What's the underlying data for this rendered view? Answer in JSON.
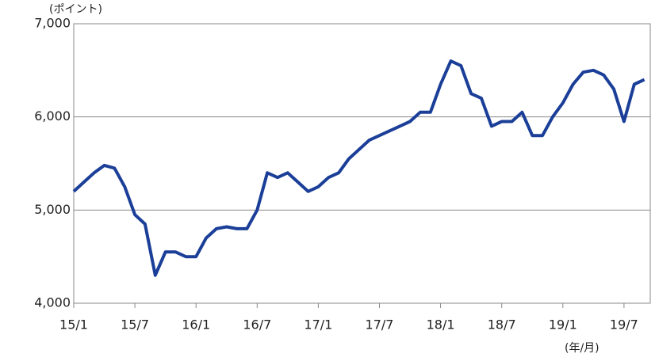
{
  "chart_data": {
    "type": "line",
    "y_unit": "(ポイント)",
    "x_unit": "(年/月)",
    "categories": [
      "15/1",
      null,
      null,
      null,
      null,
      null,
      "15/7",
      null,
      null,
      null,
      null,
      null,
      "16/1",
      null,
      null,
      null,
      null,
      null,
      "16/7",
      null,
      null,
      null,
      null,
      null,
      "17/1",
      null,
      null,
      null,
      null,
      null,
      "17/7",
      null,
      null,
      null,
      null,
      null,
      "18/1",
      null,
      null,
      null,
      null,
      null,
      "18/7",
      null,
      null,
      null,
      null,
      null,
      "19/1",
      null,
      null,
      null,
      null,
      null,
      "19/7",
      null,
      null
    ],
    "series": [
      {
        "color": "#1b3f98",
        "values": [
          5200,
          5300,
          5400,
          5480,
          5450,
          5250,
          4950,
          4850,
          4300,
          4550,
          4550,
          4500,
          4500,
          4700,
          4800,
          4820,
          4800,
          4800,
          5000,
          5400,
          5350,
          5400,
          5300,
          5200,
          5250,
          5350,
          5400,
          5550,
          5650,
          5750,
          5800,
          5850,
          5900,
          5950,
          6050,
          6050,
          6350,
          6600,
          6550,
          6250,
          6200,
          5900,
          5950,
          5950,
          6050,
          5800,
          5800,
          6000,
          6150,
          6350,
          6480,
          6500,
          6450,
          6300,
          5950,
          6350,
          6400
        ]
      }
    ],
    "ylim": [
      4000,
      7000
    ],
    "yticks": [
      {
        "value": 4000,
        "label": "4,000"
      },
      {
        "value": 5000,
        "label": "5,000"
      },
      {
        "value": 6000,
        "label": "6,000"
      },
      {
        "value": 7000,
        "label": "7,000"
      }
    ],
    "grid": true
  }
}
